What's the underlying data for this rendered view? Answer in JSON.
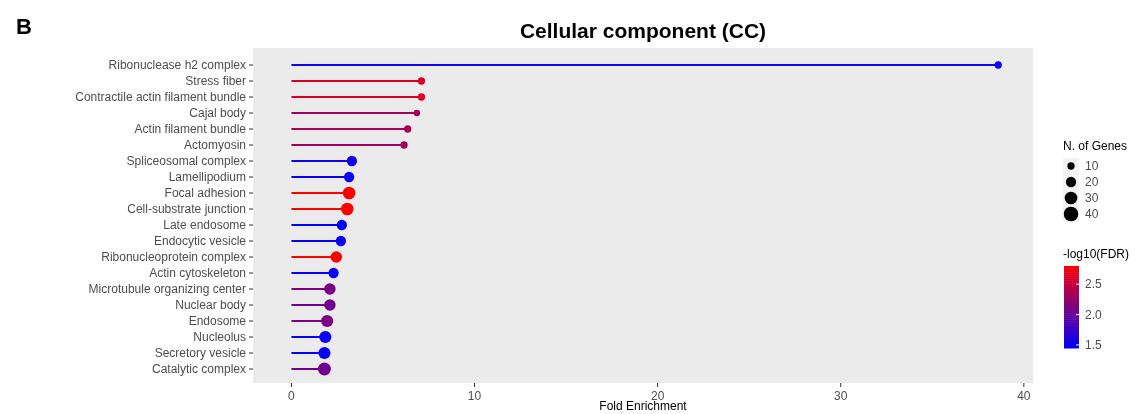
{
  "chart_data": {
    "type": "lollipop",
    "orientation": "horizontal",
    "title": "Cellular component (CC)",
    "xlabel": "Fold Enrichment",
    "annotations": [
      "B"
    ],
    "categories": [
      "Ribonuclease h2 complex",
      "Stress fiber",
      "Contractile actin filament bundle",
      "Cajal body",
      "Actin filament bundle",
      "Actomyosin",
      "Spliceosomal complex",
      "Lamellipodium",
      "Focal adhesion",
      "Cell-substrate junction",
      "Late endosome",
      "Endocytic vesicle",
      "Ribonucleoprotein complex",
      "Actin cytoskeleton",
      "Microtubule organizing center",
      "Nuclear body",
      "Endosome",
      "Nucleolus",
      "Secretory vesicle",
      "Catalytic complex"
    ],
    "values": [
      38.6,
      7.1,
      7.1,
      6.85,
      6.35,
      6.15,
      3.3,
      3.15,
      3.15,
      3.05,
      2.75,
      2.7,
      2.45,
      2.3,
      2.1,
      2.1,
      1.95,
      1.85,
      1.8,
      1.8
    ],
    "cvalues": [
      1.55,
      2.6,
      2.6,
      2.3,
      2.35,
      2.3,
      1.55,
      1.5,
      2.8,
      2.8,
      1.45,
      1.5,
      2.8,
      1.5,
      2.1,
      2.05,
      2.1,
      1.5,
      1.5,
      2.05
    ],
    "sizes": [
      10,
      10,
      10,
      8,
      10,
      10,
      20,
      20,
      30,
      30,
      20,
      20,
      25,
      20,
      25,
      25,
      28,
      28,
      28,
      32
    ],
    "size_legend": [
      10,
      20,
      30,
      40
    ],
    "legend_title": "N. of Genes",
    "clabel": "-log10(FDR)",
    "clim": [
      1.45,
      2.8
    ],
    "cticks": [
      {
        "value": 1.5,
        "label": "1.5"
      },
      {
        "value": 2,
        "label": "2.0"
      },
      {
        "value": 2.5,
        "label": "2.5"
      }
    ],
    "xlim": [
      -2.1,
      40.5
    ],
    "xticks": [
      0,
      10,
      20,
      30,
      40
    ]
  }
}
